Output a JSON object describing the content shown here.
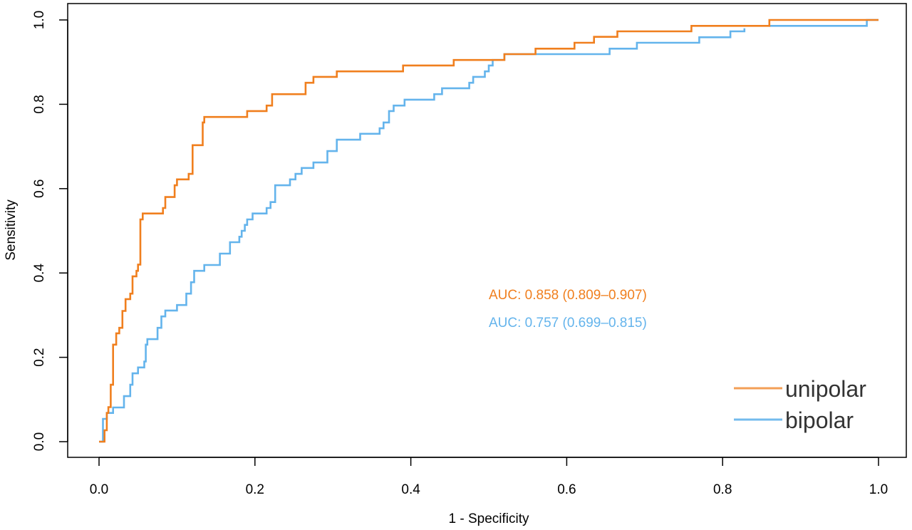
{
  "chart_data": {
    "type": "line",
    "title": "",
    "xlabel": "1 - Specificity",
    "ylabel": "Sensitivity",
    "xlim": [
      0,
      1
    ],
    "ylim": [
      0,
      1
    ],
    "x_ticks": [
      "0.0",
      "0.2",
      "0.4",
      "0.6",
      "0.8",
      "1.0"
    ],
    "y_ticks": [
      "0.0",
      "0.2",
      "0.4",
      "0.6",
      "0.8",
      "1.0"
    ],
    "grid": false,
    "legend_position": "bottom-right",
    "series": [
      {
        "name": "unipolar",
        "color": "#F07F1E",
        "auc_label": "AUC: 0.858 (0.809–0.907)",
        "points": [
          [
            0.0,
            0.0
          ],
          [
            0.007,
            0.0
          ],
          [
            0.007,
            0.027
          ],
          [
            0.01,
            0.027
          ],
          [
            0.01,
            0.068
          ],
          [
            0.012,
            0.068
          ],
          [
            0.012,
            0.082
          ],
          [
            0.015,
            0.082
          ],
          [
            0.015,
            0.135
          ],
          [
            0.018,
            0.135
          ],
          [
            0.018,
            0.23
          ],
          [
            0.022,
            0.23
          ],
          [
            0.022,
            0.257
          ],
          [
            0.026,
            0.257
          ],
          [
            0.026,
            0.27
          ],
          [
            0.03,
            0.27
          ],
          [
            0.03,
            0.31
          ],
          [
            0.034,
            0.31
          ],
          [
            0.034,
            0.338
          ],
          [
            0.04,
            0.338
          ],
          [
            0.04,
            0.351
          ],
          [
            0.043,
            0.351
          ],
          [
            0.043,
            0.392
          ],
          [
            0.048,
            0.392
          ],
          [
            0.048,
            0.405
          ],
          [
            0.05,
            0.405
          ],
          [
            0.05,
            0.42
          ],
          [
            0.053,
            0.42
          ],
          [
            0.053,
            0.527
          ],
          [
            0.056,
            0.527
          ],
          [
            0.056,
            0.541
          ],
          [
            0.082,
            0.541
          ],
          [
            0.082,
            0.554
          ],
          [
            0.085,
            0.554
          ],
          [
            0.085,
            0.58
          ],
          [
            0.097,
            0.58
          ],
          [
            0.097,
            0.608
          ],
          [
            0.1,
            0.608
          ],
          [
            0.1,
            0.622
          ],
          [
            0.115,
            0.622
          ],
          [
            0.115,
            0.635
          ],
          [
            0.12,
            0.635
          ],
          [
            0.12,
            0.703
          ],
          [
            0.133,
            0.703
          ],
          [
            0.133,
            0.757
          ],
          [
            0.135,
            0.757
          ],
          [
            0.135,
            0.77
          ],
          [
            0.19,
            0.77
          ],
          [
            0.19,
            0.784
          ],
          [
            0.215,
            0.784
          ],
          [
            0.215,
            0.797
          ],
          [
            0.222,
            0.797
          ],
          [
            0.222,
            0.824
          ],
          [
            0.265,
            0.824
          ],
          [
            0.265,
            0.851
          ],
          [
            0.275,
            0.851
          ],
          [
            0.275,
            0.865
          ],
          [
            0.305,
            0.865
          ],
          [
            0.305,
            0.878
          ],
          [
            0.39,
            0.878
          ],
          [
            0.39,
            0.892
          ],
          [
            0.455,
            0.892
          ],
          [
            0.455,
            0.905
          ],
          [
            0.52,
            0.905
          ],
          [
            0.52,
            0.919
          ],
          [
            0.56,
            0.919
          ],
          [
            0.56,
            0.932
          ],
          [
            0.61,
            0.932
          ],
          [
            0.61,
            0.946
          ],
          [
            0.635,
            0.946
          ],
          [
            0.635,
            0.96
          ],
          [
            0.665,
            0.96
          ],
          [
            0.665,
            0.973
          ],
          [
            0.76,
            0.973
          ],
          [
            0.76,
            0.986
          ],
          [
            0.86,
            0.986
          ],
          [
            0.86,
            1.0
          ],
          [
            1.0,
            1.0
          ]
        ]
      },
      {
        "name": "bipolar",
        "color": "#64B4EC",
        "auc_label": "AUC: 0.757 (0.699–0.815)",
        "points": [
          [
            0.0,
            0.0
          ],
          [
            0.005,
            0.0
          ],
          [
            0.005,
            0.054
          ],
          [
            0.01,
            0.054
          ],
          [
            0.01,
            0.068
          ],
          [
            0.018,
            0.068
          ],
          [
            0.018,
            0.081
          ],
          [
            0.032,
            0.081
          ],
          [
            0.032,
            0.108
          ],
          [
            0.04,
            0.108
          ],
          [
            0.04,
            0.135
          ],
          [
            0.043,
            0.135
          ],
          [
            0.043,
            0.162
          ],
          [
            0.05,
            0.162
          ],
          [
            0.05,
            0.176
          ],
          [
            0.058,
            0.176
          ],
          [
            0.058,
            0.19
          ],
          [
            0.06,
            0.19
          ],
          [
            0.06,
            0.23
          ],
          [
            0.062,
            0.23
          ],
          [
            0.062,
            0.243
          ],
          [
            0.075,
            0.243
          ],
          [
            0.075,
            0.27
          ],
          [
            0.08,
            0.27
          ],
          [
            0.08,
            0.297
          ],
          [
            0.085,
            0.297
          ],
          [
            0.085,
            0.311
          ],
          [
            0.1,
            0.311
          ],
          [
            0.1,
            0.324
          ],
          [
            0.112,
            0.324
          ],
          [
            0.112,
            0.351
          ],
          [
            0.118,
            0.351
          ],
          [
            0.118,
            0.378
          ],
          [
            0.122,
            0.378
          ],
          [
            0.122,
            0.405
          ],
          [
            0.135,
            0.405
          ],
          [
            0.135,
            0.419
          ],
          [
            0.155,
            0.419
          ],
          [
            0.155,
            0.446
          ],
          [
            0.168,
            0.446
          ],
          [
            0.168,
            0.473
          ],
          [
            0.18,
            0.473
          ],
          [
            0.18,
            0.486
          ],
          [
            0.183,
            0.486
          ],
          [
            0.183,
            0.5
          ],
          [
            0.187,
            0.5
          ],
          [
            0.187,
            0.514
          ],
          [
            0.19,
            0.514
          ],
          [
            0.19,
            0.527
          ],
          [
            0.197,
            0.527
          ],
          [
            0.197,
            0.541
          ],
          [
            0.215,
            0.541
          ],
          [
            0.215,
            0.554
          ],
          [
            0.22,
            0.554
          ],
          [
            0.22,
            0.568
          ],
          [
            0.226,
            0.568
          ],
          [
            0.226,
            0.608
          ],
          [
            0.245,
            0.608
          ],
          [
            0.245,
            0.622
          ],
          [
            0.252,
            0.622
          ],
          [
            0.252,
            0.635
          ],
          [
            0.26,
            0.635
          ],
          [
            0.26,
            0.649
          ],
          [
            0.275,
            0.649
          ],
          [
            0.275,
            0.662
          ],
          [
            0.293,
            0.662
          ],
          [
            0.293,
            0.689
          ],
          [
            0.305,
            0.689
          ],
          [
            0.305,
            0.716
          ],
          [
            0.335,
            0.716
          ],
          [
            0.335,
            0.73
          ],
          [
            0.36,
            0.73
          ],
          [
            0.36,
            0.743
          ],
          [
            0.365,
            0.743
          ],
          [
            0.365,
            0.757
          ],
          [
            0.372,
            0.757
          ],
          [
            0.372,
            0.784
          ],
          [
            0.378,
            0.784
          ],
          [
            0.378,
            0.797
          ],
          [
            0.392,
            0.797
          ],
          [
            0.392,
            0.811
          ],
          [
            0.43,
            0.811
          ],
          [
            0.43,
            0.824
          ],
          [
            0.44,
            0.824
          ],
          [
            0.44,
            0.838
          ],
          [
            0.475,
            0.838
          ],
          [
            0.475,
            0.851
          ],
          [
            0.48,
            0.851
          ],
          [
            0.48,
            0.865
          ],
          [
            0.495,
            0.865
          ],
          [
            0.495,
            0.878
          ],
          [
            0.5,
            0.878
          ],
          [
            0.5,
            0.892
          ],
          [
            0.505,
            0.892
          ],
          [
            0.505,
            0.905
          ],
          [
            0.52,
            0.905
          ],
          [
            0.52,
            0.919
          ],
          [
            0.655,
            0.919
          ],
          [
            0.655,
            0.932
          ],
          [
            0.69,
            0.932
          ],
          [
            0.69,
            0.946
          ],
          [
            0.77,
            0.946
          ],
          [
            0.77,
            0.959
          ],
          [
            0.81,
            0.959
          ],
          [
            0.81,
            0.973
          ],
          [
            0.828,
            0.973
          ],
          [
            0.828,
            0.98
          ]
        ],
        "points_right": [
          [
            0.86,
            0.986
          ],
          [
            0.985,
            0.986
          ],
          [
            0.985,
            1.0
          ],
          [
            1.0,
            1.0
          ]
        ]
      }
    ]
  }
}
